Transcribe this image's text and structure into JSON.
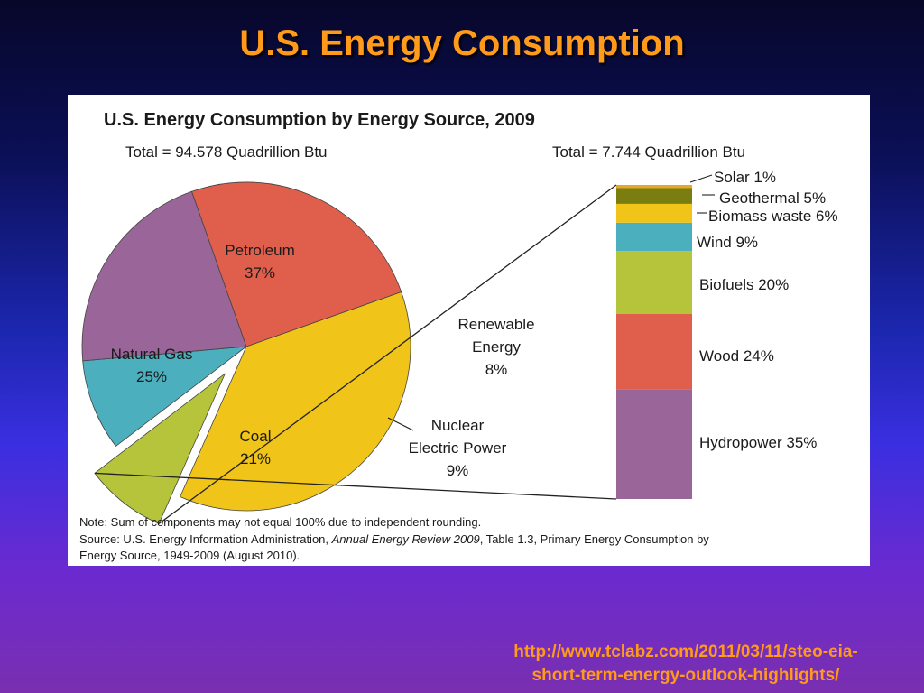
{
  "slide": {
    "title": "U.S. Energy Consumption",
    "source_url_line1": "http://www.tclabz.com/2011/03/11/steo-eia-",
    "source_url_line2": "short-term-energy-outlook-highlights/"
  },
  "colors": {
    "title_orange": "#ff9a1a",
    "petroleum": "#f0c419",
    "natural_gas": "#e05f4c",
    "coal": "#9a6598",
    "nuclear": "#4bafbd",
    "renewable": "#b5c43a",
    "solar": "#e3a92a",
    "geothermal": "#7a7e10",
    "biomass_waste": "#f0c419",
    "wind": "#4bafbd",
    "biofuels": "#b5c43a",
    "wood": "#e05f4c",
    "hydropower": "#9a6598"
  },
  "chart_data": [
    {
      "type": "pie",
      "title": "U.S. Energy Consumption by Energy Source, 2009",
      "subtitle": "Total = 94.578 Quadrillion Btu",
      "slices": [
        {
          "key": "petroleum",
          "label": "Petroleum",
          "value": 37,
          "value_label": "37%",
          "color": "#f0c419",
          "exploded": false
        },
        {
          "key": "renewable",
          "label": "Renewable\nEnergy",
          "value": 8,
          "value_label": "8%",
          "color": "#b5c43a",
          "exploded": true
        },
        {
          "key": "nuclear",
          "label": "Nuclear\nElectric Power",
          "value": 9,
          "value_label": "9%",
          "color": "#4bafbd",
          "exploded": false
        },
        {
          "key": "coal",
          "label": "Coal",
          "value": 21,
          "value_label": "21%",
          "color": "#9a6598",
          "exploded": false
        },
        {
          "key": "natural_gas",
          "label": "Natural Gas",
          "value": 25,
          "value_label": "25%",
          "color": "#e05f4c",
          "exploded": false
        }
      ]
    },
    {
      "type": "bar",
      "subtitle": "Total = 7.744 Quadrillion Btu",
      "stacked": true,
      "categories": [
        "Renewable Energy"
      ],
      "series": [
        {
          "name": "Hydropower",
          "value": 35,
          "value_label": "35%",
          "color": "#9a6598"
        },
        {
          "name": "Wood",
          "value": 24,
          "value_label": "24%",
          "color": "#e05f4c"
        },
        {
          "name": "Biofuels",
          "value": 20,
          "value_label": "20%",
          "color": "#b5c43a"
        },
        {
          "name": "Wind",
          "value": 9,
          "value_label": "9%",
          "color": "#4bafbd"
        },
        {
          "name": "Biomass waste",
          "value": 6,
          "value_label": "6%",
          "color": "#f0c419"
        },
        {
          "name": "Geothermal",
          "value": 5,
          "value_label": "5%",
          "color": "#7a7e10"
        },
        {
          "name": "Solar",
          "value": 1,
          "value_label": "1%",
          "color": "#e3a92a"
        }
      ]
    }
  ],
  "notes": {
    "note": "Note: Sum of components may not equal 100% due to independent rounding.",
    "source_prefix": "Source: U.S. Energy Information Administration, ",
    "source_italic": "Annual Energy Review 2009",
    "source_suffix": ", Table 1.3, Primary Energy Consumption by",
    "source_line2": "Energy Source, 1949-2009 (August 2010)."
  }
}
